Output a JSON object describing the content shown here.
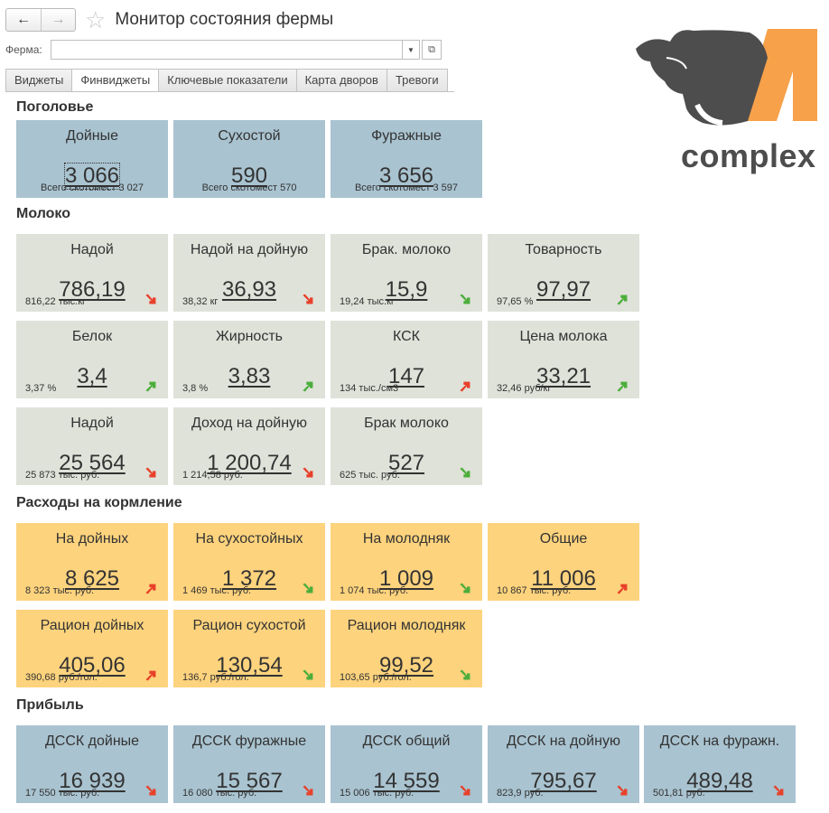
{
  "header": {
    "back_label": "←",
    "forward_label": "→",
    "title": "Монитор состояния фермы"
  },
  "farm": {
    "label": "Ферма:",
    "value": ""
  },
  "tabs": [
    "Виджеты",
    "Финвиджеты",
    "Ключевые показатели",
    "Карта дворов",
    "Тревоги"
  ],
  "logo": {
    "text": "complex"
  },
  "sections": {
    "headcount": "Поголовье",
    "milk": "Молоко",
    "feeding": "Расходы на кормление",
    "profit": "Прибыль"
  },
  "headcount": [
    {
      "label": "Дойные",
      "value": "3 066",
      "sub": "Всего скотомест 3 027"
    },
    {
      "label": "Сухостой",
      "value": "590",
      "sub": "Всего скотомест 570"
    },
    {
      "label": "Фуражные",
      "value": "3 656",
      "sub": "Всего скотомест 3 597"
    }
  ],
  "milk": [
    {
      "label": "Надой",
      "value": "786,19",
      "sub": "816,22  тыс.кг",
      "trend": "down-red"
    },
    {
      "label": "Надой на дойную",
      "value": "36,93",
      "sub": "38,32  кг",
      "trend": "down-red"
    },
    {
      "label": "Брак. молоко",
      "value": "15,9",
      "sub": "19,24  тыс.кг",
      "trend": "down-green"
    },
    {
      "label": "Товарность",
      "value": "97,97",
      "sub": "97,65  %",
      "trend": "up-green"
    },
    {
      "label": "Белок",
      "value": "3,4",
      "sub": "3,37  %",
      "trend": "up-green"
    },
    {
      "label": "Жирность",
      "value": "3,83",
      "sub": "3,8  %",
      "trend": "up-green"
    },
    {
      "label": "КСК",
      "value": "147",
      "sub": "134  тыс./см3",
      "trend": "up-red"
    },
    {
      "label": "Цена молока",
      "value": "33,21",
      "sub": "32,46  руб/кг",
      "trend": "up-green"
    },
    {
      "label": "Надой",
      "value": "25 564",
      "sub": "25 873  тыс. руб.",
      "trend": "down-red"
    },
    {
      "label": "Доход на дойную",
      "value": "1 200,74",
      "sub": "1 214,58  руб.",
      "trend": "down-red"
    },
    {
      "label": "Брак молоко",
      "value": "527",
      "sub": "625  тыс. руб.",
      "trend": "down-green"
    }
  ],
  "feeding": [
    {
      "label": "На дойных",
      "value": "8 625",
      "sub": "8 323  тыс. руб.",
      "trend": "up-red"
    },
    {
      "label": "На сухостойных",
      "value": "1 372",
      "sub": "1 469  тыс. руб.",
      "trend": "down-green"
    },
    {
      "label": "На молодняк",
      "value": "1 009",
      "sub": "1 074  тыс. руб.",
      "trend": "down-green"
    },
    {
      "label": "Общие",
      "value": "11 006",
      "sub": "10 867  тыс. руб.",
      "trend": "up-red"
    },
    {
      "label": "Рацион дойных",
      "value": "405,06",
      "sub": "390,68  руб./гол.",
      "trend": "up-red"
    },
    {
      "label": "Рацион сухостой",
      "value": "130,54",
      "sub": "136,7  руб./гол.",
      "trend": "down-green"
    },
    {
      "label": "Рацион молодняк",
      "value": "99,52",
      "sub": "103,65  руб./гол.",
      "trend": "down-green"
    }
  ],
  "profit": [
    {
      "label": "ДССК дойные",
      "value": "16 939",
      "sub": "17 550  тыс. руб.",
      "trend": "down-red"
    },
    {
      "label": "ДССК фуражные",
      "value": "15 567",
      "sub": "16 080  тыс. руб.",
      "trend": "down-red"
    },
    {
      "label": "ДССК общий",
      "value": "14 559",
      "sub": "15 006  тыс. руб.",
      "trend": "down-red"
    },
    {
      "label": "ДССК на дойную",
      "value": "795,67",
      "sub": "823,9  руб.",
      "trend": "down-red"
    },
    {
      "label": "ДССК на фуражн.",
      "value": "489,48",
      "sub": "501,81  руб.",
      "trend": "down-red"
    }
  ],
  "colors": {
    "headcount_bg": "#a9c3d0",
    "milk_bg": "#dfe2d9",
    "feeding_bg": "#fed37d",
    "profit_bg": "#a9c3d0",
    "trend_red": "#e8412b",
    "trend_green": "#4cae3c",
    "logo_orange": "#f7a14a",
    "logo_grey": "#4d4d4d"
  }
}
